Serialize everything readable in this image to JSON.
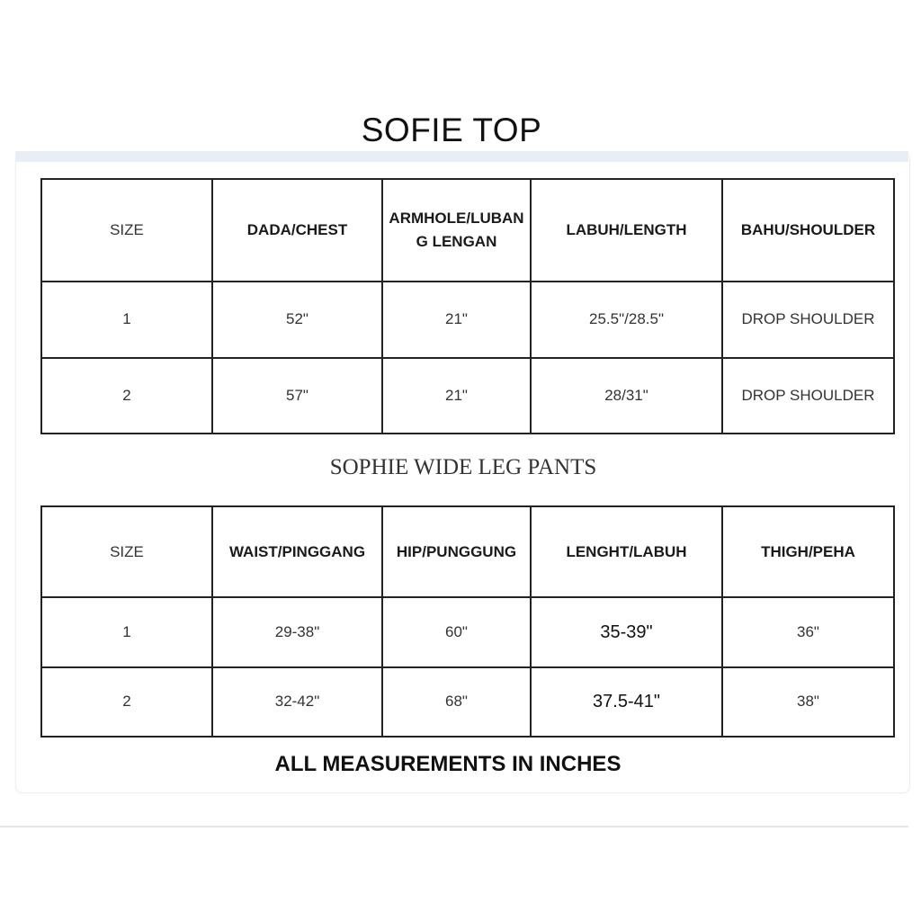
{
  "top": {
    "title": "SOFIE TOP",
    "headers": [
      "SIZE",
      "DADA/CHEST",
      "ARMHOLE/LUBANG LENGAN",
      "LABUH/LENGTH",
      "BAHU/SHOULDER"
    ],
    "rows": [
      [
        "1",
        "52\"",
        "21\"",
        "25.5\"/28.5\"",
        "DROP SHOULDER"
      ],
      [
        "2",
        "57\"",
        "21\"",
        "28/31\"",
        "DROP SHOULDER"
      ]
    ]
  },
  "pants": {
    "title": "SOPHIE WIDE LEG PANTS",
    "headers": [
      "SIZE",
      "WAIST/PINGGANG",
      "HIP/PUNGGUNG",
      "LENGHT/LABUH",
      "THIGH/PEHA"
    ],
    "rows": [
      [
        "1",
        "29-38\"",
        "60\"",
        "35-39\"",
        "36\""
      ],
      [
        "2",
        "32-42\"",
        "68\"",
        "37.5-41\"",
        "38\""
      ]
    ]
  },
  "footer": "ALL MEASUREMENTS IN INCHES"
}
